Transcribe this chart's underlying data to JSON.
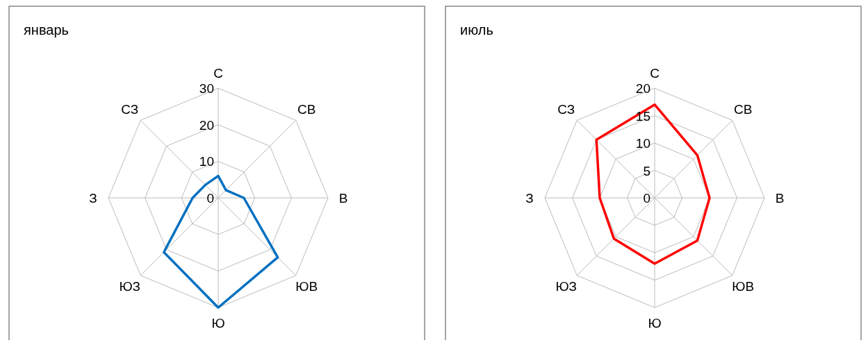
{
  "chart_data": [
    {
      "type": "radar",
      "title": "январь",
      "categories": [
        "С",
        "СВ",
        "В",
        "ЮВ",
        "Ю",
        "ЮЗ",
        "З",
        "СЗ"
      ],
      "series": [
        {
          "color": "#0070c0",
          "values": [
            6,
            3,
            7,
            23,
            30,
            21,
            7,
            5
          ]
        }
      ],
      "ylim": [
        0,
        30
      ],
      "yticks": [
        0,
        10,
        20,
        30
      ],
      "grid": true
    },
    {
      "type": "radar",
      "title": "июль",
      "categories": [
        "С",
        "СВ",
        "В",
        "ЮВ",
        "Ю",
        "ЮЗ",
        "З",
        "СЗ"
      ],
      "series": [
        {
          "color": "#ff0000",
          "values": [
            17,
            11,
            10,
            11,
            12,
            10.5,
            10,
            15
          ]
        }
      ],
      "ylim": [
        0,
        20
      ],
      "yticks": [
        0,
        5,
        10,
        15,
        20
      ],
      "grid": true
    }
  ]
}
